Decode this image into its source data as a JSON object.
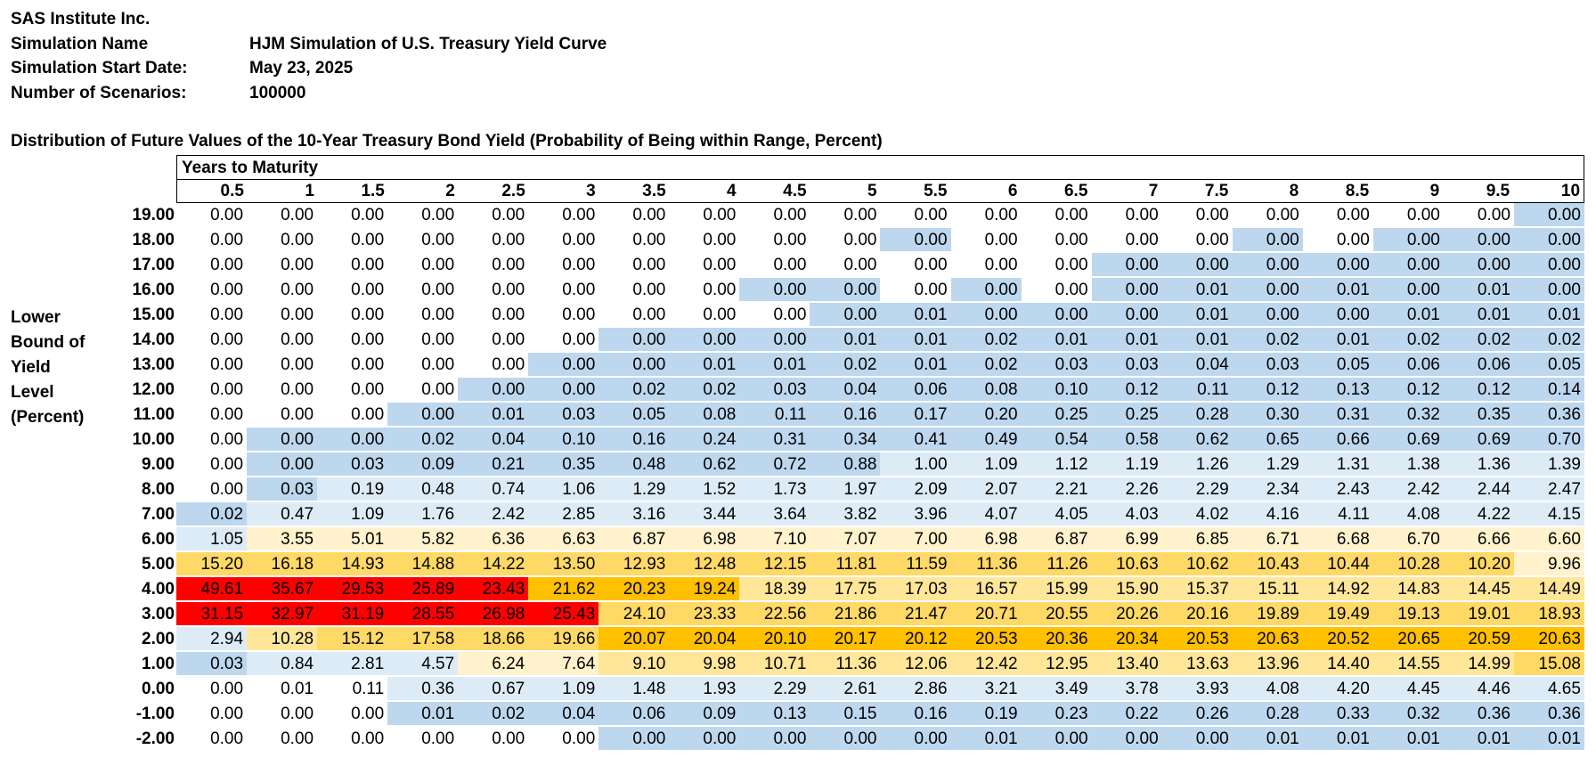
{
  "header": {
    "company": "SAS Institute Inc.",
    "fields": [
      {
        "label": "Simulation Name",
        "value": "HJM Simulation of U.S. Treasury Yield Curve"
      },
      {
        "label": "Simulation Start Date:",
        "value": "May 23, 2025"
      },
      {
        "label": "Number of Scenarios:",
        "value": "100000"
      }
    ]
  },
  "table": {
    "title": "Distribution of Future Values of the 10-Year Treasury Bond Yield (Probability of Being within Range, Percent)",
    "column_group_label": "Years to Maturity",
    "side_label": [
      "Lower",
      "Bound of",
      "Yield",
      "Level",
      "(Percent)"
    ],
    "columns": [
      "0.5",
      "1",
      "1.5",
      "2",
      "2.5",
      "3",
      "3.5",
      "4",
      "4.5",
      "5",
      "5.5",
      "6",
      "6.5",
      "7",
      "7.5",
      "8",
      "8.5",
      "9",
      "9.5",
      "10"
    ],
    "colors": {
      "white": "#ffffff",
      "blue": "#bdd7ee",
      "light": "#ddebf7",
      "cream": "#fff2cc",
      "yellow": "#ffe699",
      "gold": "#ffd966",
      "orange": "#ffc000",
      "red": "#ff0000"
    },
    "rows": [
      {
        "label": "19.00",
        "values": [
          "0.00",
          "0.00",
          "0.00",
          "0.00",
          "0.00",
          "0.00",
          "0.00",
          "0.00",
          "0.00",
          "0.00",
          "0.00",
          "0.00",
          "0.00",
          "0.00",
          "0.00",
          "0.00",
          "0.00",
          "0.00",
          "0.00",
          "0.00"
        ]
      },
      {
        "label": "18.00",
        "values": [
          "0.00",
          "0.00",
          "0.00",
          "0.00",
          "0.00",
          "0.00",
          "0.00",
          "0.00",
          "0.00",
          "0.00",
          "0.00",
          "0.00",
          "0.00",
          "0.00",
          "0.00",
          "0.00",
          "0.00",
          "0.00",
          "0.00",
          "0.00"
        ]
      },
      {
        "label": "17.00",
        "values": [
          "0.00",
          "0.00",
          "0.00",
          "0.00",
          "0.00",
          "0.00",
          "0.00",
          "0.00",
          "0.00",
          "0.00",
          "0.00",
          "0.00",
          "0.00",
          "0.00",
          "0.00",
          "0.00",
          "0.00",
          "0.00",
          "0.00",
          "0.00"
        ]
      },
      {
        "label": "16.00",
        "values": [
          "0.00",
          "0.00",
          "0.00",
          "0.00",
          "0.00",
          "0.00",
          "0.00",
          "0.00",
          "0.00",
          "0.00",
          "0.00",
          "0.00",
          "0.00",
          "0.00",
          "0.01",
          "0.00",
          "0.01",
          "0.00",
          "0.01",
          "0.00"
        ]
      },
      {
        "label": "15.00",
        "values": [
          "0.00",
          "0.00",
          "0.00",
          "0.00",
          "0.00",
          "0.00",
          "0.00",
          "0.00",
          "0.00",
          "0.00",
          "0.01",
          "0.00",
          "0.00",
          "0.00",
          "0.01",
          "0.00",
          "0.00",
          "0.01",
          "0.01",
          "0.01"
        ]
      },
      {
        "label": "14.00",
        "values": [
          "0.00",
          "0.00",
          "0.00",
          "0.00",
          "0.00",
          "0.00",
          "0.00",
          "0.00",
          "0.00",
          "0.01",
          "0.01",
          "0.02",
          "0.01",
          "0.01",
          "0.01",
          "0.02",
          "0.01",
          "0.02",
          "0.02",
          "0.02"
        ]
      },
      {
        "label": "13.00",
        "values": [
          "0.00",
          "0.00",
          "0.00",
          "0.00",
          "0.00",
          "0.00",
          "0.00",
          "0.01",
          "0.01",
          "0.02",
          "0.01",
          "0.02",
          "0.03",
          "0.03",
          "0.04",
          "0.03",
          "0.05",
          "0.06",
          "0.06",
          "0.05"
        ]
      },
      {
        "label": "12.00",
        "values": [
          "0.00",
          "0.00",
          "0.00",
          "0.00",
          "0.00",
          "0.00",
          "0.02",
          "0.02",
          "0.03",
          "0.04",
          "0.06",
          "0.08",
          "0.10",
          "0.12",
          "0.11",
          "0.12",
          "0.13",
          "0.12",
          "0.12",
          "0.14"
        ]
      },
      {
        "label": "11.00",
        "values": [
          "0.00",
          "0.00",
          "0.00",
          "0.00",
          "0.01",
          "0.03",
          "0.05",
          "0.08",
          "0.11",
          "0.16",
          "0.17",
          "0.20",
          "0.25",
          "0.25",
          "0.28",
          "0.30",
          "0.31",
          "0.32",
          "0.35",
          "0.36"
        ]
      },
      {
        "label": "10.00",
        "values": [
          "0.00",
          "0.00",
          "0.00",
          "0.02",
          "0.04",
          "0.10",
          "0.16",
          "0.24",
          "0.31",
          "0.34",
          "0.41",
          "0.49",
          "0.54",
          "0.58",
          "0.62",
          "0.65",
          "0.66",
          "0.69",
          "0.69",
          "0.70"
        ]
      },
      {
        "label": "9.00",
        "values": [
          "0.00",
          "0.00",
          "0.03",
          "0.09",
          "0.21",
          "0.35",
          "0.48",
          "0.62",
          "0.72",
          "0.88",
          "1.00",
          "1.09",
          "1.12",
          "1.19",
          "1.26",
          "1.29",
          "1.31",
          "1.38",
          "1.36",
          "1.39"
        ]
      },
      {
        "label": "8.00",
        "values": [
          "0.00",
          "0.03",
          "0.19",
          "0.48",
          "0.74",
          "1.06",
          "1.29",
          "1.52",
          "1.73",
          "1.97",
          "2.09",
          "2.07",
          "2.21",
          "2.26",
          "2.29",
          "2.34",
          "2.43",
          "2.42",
          "2.44",
          "2.47"
        ]
      },
      {
        "label": "7.00",
        "values": [
          "0.02",
          "0.47",
          "1.09",
          "1.76",
          "2.42",
          "2.85",
          "3.16",
          "3.44",
          "3.64",
          "3.82",
          "3.96",
          "4.07",
          "4.05",
          "4.03",
          "4.02",
          "4.16",
          "4.11",
          "4.08",
          "4.22",
          "4.15"
        ]
      },
      {
        "label": "6.00",
        "values": [
          "1.05",
          "3.55",
          "5.01",
          "5.82",
          "6.36",
          "6.63",
          "6.87",
          "6.98",
          "7.10",
          "7.07",
          "7.00",
          "6.98",
          "6.87",
          "6.99",
          "6.85",
          "6.71",
          "6.68",
          "6.70",
          "6.66",
          "6.60"
        ]
      },
      {
        "label": "5.00",
        "values": [
          "15.20",
          "16.18",
          "14.93",
          "14.88",
          "14.22",
          "13.50",
          "12.93",
          "12.48",
          "12.15",
          "11.81",
          "11.59",
          "11.36",
          "11.26",
          "10.63",
          "10.62",
          "10.43",
          "10.44",
          "10.28",
          "10.20",
          "9.96"
        ]
      },
      {
        "label": "4.00",
        "values": [
          "49.61",
          "35.67",
          "29.53",
          "25.89",
          "23.43",
          "21.62",
          "20.23",
          "19.24",
          "18.39",
          "17.75",
          "17.03",
          "16.57",
          "15.99",
          "15.90",
          "15.37",
          "15.11",
          "14.92",
          "14.83",
          "14.45",
          "14.49"
        ]
      },
      {
        "label": "3.00",
        "values": [
          "31.15",
          "32.97",
          "31.19",
          "28.55",
          "26.98",
          "25.43",
          "24.10",
          "23.33",
          "22.56",
          "21.86",
          "21.47",
          "20.71",
          "20.55",
          "20.26",
          "20.16",
          "19.89",
          "19.49",
          "19.13",
          "19.01",
          "18.93"
        ]
      },
      {
        "label": "2.00",
        "values": [
          "2.94",
          "10.28",
          "15.12",
          "17.58",
          "18.66",
          "19.66",
          "20.07",
          "20.04",
          "20.10",
          "20.17",
          "20.12",
          "20.53",
          "20.36",
          "20.34",
          "20.53",
          "20.63",
          "20.52",
          "20.65",
          "20.59",
          "20.63"
        ]
      },
      {
        "label": "1.00",
        "values": [
          "0.03",
          "0.84",
          "2.81",
          "4.57",
          "6.24",
          "7.64",
          "9.10",
          "9.98",
          "10.71",
          "11.36",
          "12.06",
          "12.42",
          "12.95",
          "13.40",
          "13.63",
          "13.96",
          "14.40",
          "14.55",
          "14.99",
          "15.08"
        ]
      },
      {
        "label": "0.00",
        "values": [
          "0.00",
          "0.01",
          "0.11",
          "0.36",
          "0.67",
          "1.09",
          "1.48",
          "1.93",
          "2.29",
          "2.61",
          "2.86",
          "3.21",
          "3.49",
          "3.78",
          "3.93",
          "4.08",
          "4.20",
          "4.45",
          "4.46",
          "4.65"
        ]
      },
      {
        "label": "-1.00",
        "values": [
          "0.00",
          "0.00",
          "0.00",
          "0.01",
          "0.02",
          "0.04",
          "0.06",
          "0.09",
          "0.13",
          "0.15",
          "0.16",
          "0.19",
          "0.23",
          "0.22",
          "0.26",
          "0.28",
          "0.33",
          "0.32",
          "0.36",
          "0.36"
        ]
      },
      {
        "label": "-2.00",
        "values": [
          "0.00",
          "0.00",
          "0.00",
          "0.00",
          "0.00",
          "0.00",
          "0.00",
          "0.00",
          "0.00",
          "0.00",
          "0.00",
          "0.01",
          "0.00",
          "0.00",
          "0.00",
          "0.01",
          "0.01",
          "0.01",
          "0.01",
          "0.01"
        ]
      }
    ],
    "cell_colors": [
      "WWWWWWWWWWWWWWWWWWWB",
      "WWWWWWWWWWBWWWWBWBBB",
      "WWWWWWWWWWWWWBBBBBBB",
      "WWWWWWWWBBWBWBBBBBBB",
      "WWWWWWWWWBBBBBBBBBBB",
      "WWWWWWBBBBBBBBBBBBBB",
      "WWWWWBBBBBBBBBBBBBBB",
      "WWWWBBBBBBBBBBBBBBBB",
      "WWWBBBBBBBBBBBBBBBBB",
      "WBBBBBBBBBBBBBBBBBBB",
      "WBBBBBBBBBLLLLLLLLLL",
      "WBLLLLLLLLLLLLLLLLLL",
      "BLLLLLLLLLLLLLLLLLLL",
      "LCCCCCCCCCCCCCCCCCCC",
      "GGGGGGGGGGGGGGGGGGGC",
      "RRRRROOOYYYYYYYYYYYY",
      "RRRRRRGGGGGGGGGGGGGG",
      "LYGGGGOOOOOOOOOOOOOO",
      "BLLLCCYYYYYYYYYYYYYG",
      "WWWLLLLLLLLLLLLLLLLL",
      "WWWBBBBBBBBBBBBBBBBB",
      "WWWWWWBBBBBBBBBBBBBB"
    ]
  }
}
